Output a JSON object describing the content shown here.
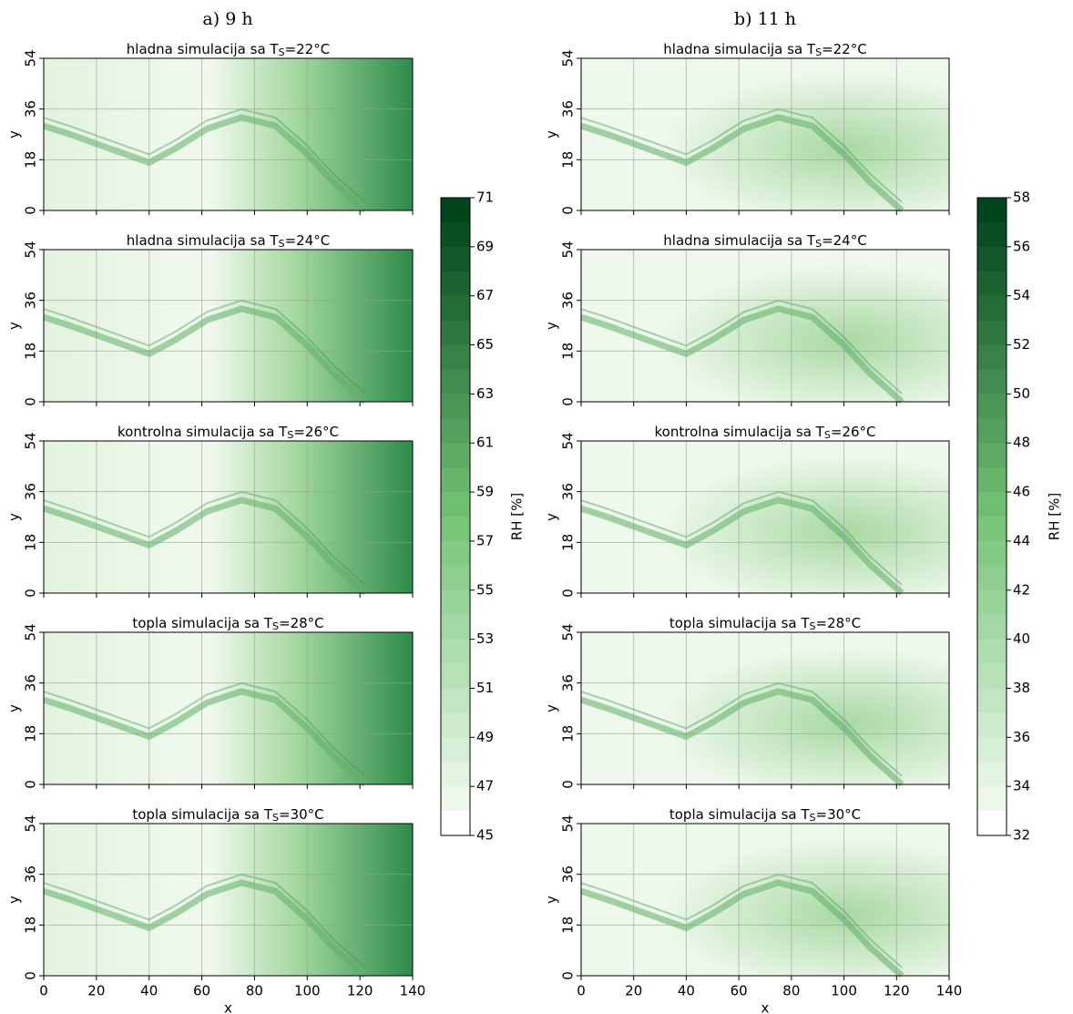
{
  "chart_data": [
    {
      "type": "heatmap",
      "title": "a) 9 h",
      "xlabel": "x",
      "ylabel": "y",
      "xlim": [
        0,
        140
      ],
      "xticks": [
        0,
        20,
        40,
        60,
        80,
        100,
        120,
        140
      ],
      "ylim": [
        0,
        54
      ],
      "yticks": [
        0,
        18,
        36,
        54
      ],
      "panels": [
        {
          "title": [
            "hladna simulacija sa T",
            "S",
            "=22°C"
          ]
        },
        {
          "title": [
            "hladna simulacija sa T",
            "S",
            "=24°C"
          ]
        },
        {
          "title": [
            "kontrolna simulacija sa T",
            "S",
            "=26°C"
          ]
        },
        {
          "title": [
            "topla simulacija sa T",
            "S",
            "=28°C"
          ]
        },
        {
          "title": [
            "topla simulacija sa T",
            "S",
            "=30°C"
          ]
        }
      ],
      "colorbar": {
        "label": "RH [%]",
        "lim": [
          45,
          71
        ],
        "ticks": [
          45,
          47,
          49,
          51,
          53,
          55,
          57,
          59,
          61,
          63,
          65,
          67,
          69,
          71
        ]
      }
    },
    {
      "type": "heatmap",
      "title": "b) 11 h",
      "xlabel": "x",
      "ylabel": "y",
      "xlim": [
        0,
        140
      ],
      "xticks": [
        0,
        20,
        40,
        60,
        80,
        100,
        120,
        140
      ],
      "ylim": [
        0,
        54
      ],
      "yticks": [
        0,
        18,
        36,
        54
      ],
      "panels": [
        {
          "title": [
            "hladna simulacija sa T",
            "S",
            "=22°C"
          ]
        },
        {
          "title": [
            "hladna simulacija sa T",
            "S",
            "=24°C"
          ]
        },
        {
          "title": [
            "kontrolna simulacija sa T",
            "S",
            "=26°C"
          ]
        },
        {
          "title": [
            "topla simulacija sa T",
            "S",
            "=28°C"
          ]
        },
        {
          "title": [
            "topla simulacija sa T",
            "S",
            "=30°C"
          ]
        }
      ],
      "colorbar": {
        "label": "RH [%]",
        "lim": [
          32,
          58
        ],
        "ticks": [
          32,
          34,
          36,
          38,
          40,
          42,
          44,
          46,
          48,
          50,
          52,
          54,
          56,
          58
        ]
      }
    }
  ]
}
